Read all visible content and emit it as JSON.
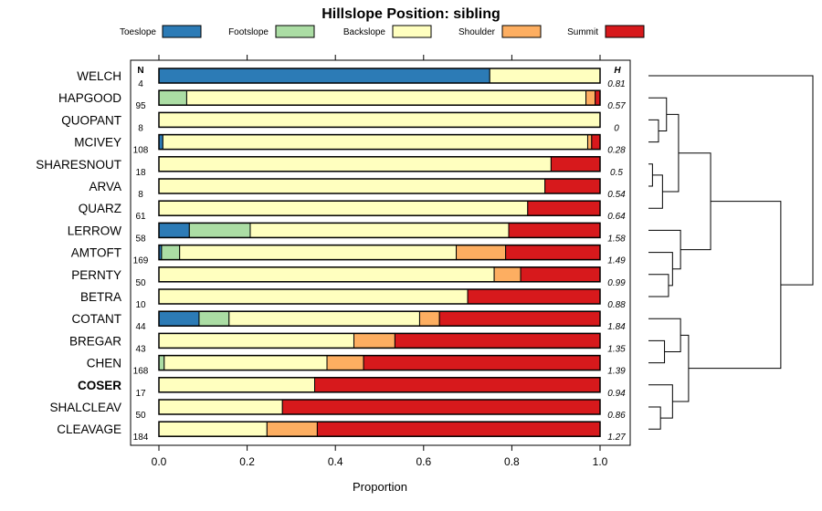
{
  "chart_data": {
    "type": "bar",
    "orientation": "horizontal",
    "stacked": true,
    "title": "Hillslope Position: sibling",
    "xlabel": "Proportion",
    "ylabel": "",
    "xlim": [
      0,
      1
    ],
    "x_ticks": [
      "0.0",
      "0.2",
      "0.4",
      "0.6",
      "0.8",
      "1.0"
    ],
    "n_header": "N",
    "h_header": "H",
    "legend": [
      {
        "name": "Toeslope",
        "color": "#2c7bb6"
      },
      {
        "name": "Footslope",
        "color": "#abdda4"
      },
      {
        "name": "Backslope",
        "color": "#ffffbf"
      },
      {
        "name": "Shoulder",
        "color": "#fdae61"
      },
      {
        "name": "Summit",
        "color": "#d7191c"
      }
    ],
    "categories": [
      "WELCH",
      "HAPGOOD",
      "QUOPANT",
      "MCIVEY",
      "SHARESNOUT",
      "ARVA",
      "QUARZ",
      "LERROW",
      "AMTOFT",
      "PERNTY",
      "BETRA",
      "COTANT",
      "BREGAR",
      "CHEN",
      "COSER",
      "SHALCLEAV",
      "CLEAVAGE"
    ],
    "highlight": "COSER",
    "n": [
      "4",
      "95",
      "8",
      "108",
      "18",
      "8",
      "61",
      "58",
      "169",
      "50",
      "10",
      "44",
      "43",
      "168",
      "17",
      "50",
      "184"
    ],
    "h": [
      "0.81",
      "0.57",
      "0",
      "0.28",
      "0.5",
      "0.54",
      "0.64",
      "1.58",
      "1.49",
      "0.99",
      "0.88",
      "1.84",
      "1.35",
      "1.39",
      "0.94",
      "0.86",
      "1.27"
    ],
    "proportions": [
      [
        0.75,
        0,
        0.25,
        0,
        0
      ],
      [
        0,
        0.063,
        0.905,
        0.021,
        0.011
      ],
      [
        0,
        0,
        1.0,
        0,
        0
      ],
      [
        0.009,
        0,
        0.963,
        0.009,
        0.019
      ],
      [
        0,
        0,
        0.889,
        0,
        0.111
      ],
      [
        0,
        0,
        0.875,
        0,
        0.125
      ],
      [
        0,
        0,
        0.836,
        0,
        0.164
      ],
      [
        0.069,
        0.138,
        0.586,
        0,
        0.207
      ],
      [
        0.006,
        0.041,
        0.627,
        0.112,
        0.214
      ],
      [
        0,
        0,
        0.76,
        0.06,
        0.18
      ],
      [
        0,
        0,
        0.7,
        0,
        0.3
      ],
      [
        0.091,
        0.068,
        0.432,
        0.045,
        0.364
      ],
      [
        0,
        0,
        0.442,
        0.093,
        0.465
      ],
      [
        0,
        0.012,
        0.369,
        0.083,
        0.536
      ],
      [
        0,
        0,
        0.353,
        0,
        0.647
      ],
      [
        0,
        0,
        0.28,
        0,
        0.72
      ],
      [
        0,
        0,
        0.245,
        0.114,
        0.641
      ]
    ]
  }
}
